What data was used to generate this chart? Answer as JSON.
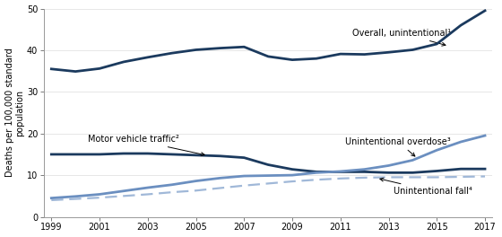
{
  "years": [
    1999,
    2000,
    2001,
    2002,
    2003,
    2004,
    2005,
    2006,
    2007,
    2008,
    2009,
    2010,
    2011,
    2012,
    2013,
    2014,
    2015,
    2016,
    2017
  ],
  "overall": [
    35.5,
    34.9,
    35.6,
    37.2,
    38.3,
    39.3,
    40.1,
    40.5,
    40.8,
    38.5,
    37.7,
    38.0,
    39.1,
    39.0,
    39.5,
    40.1,
    41.5,
    46.0,
    49.5
  ],
  "motor_vehicle": [
    15.0,
    15.0,
    15.0,
    15.2,
    15.2,
    15.0,
    14.8,
    14.6,
    14.2,
    12.5,
    11.4,
    10.8,
    10.8,
    10.8,
    10.6,
    10.6,
    11.0,
    11.5,
    11.5
  ],
  "overdose": [
    4.5,
    4.9,
    5.4,
    6.2,
    7.0,
    7.7,
    8.6,
    9.3,
    9.8,
    9.9,
    10.0,
    10.6,
    10.9,
    11.4,
    12.3,
    13.6,
    16.0,
    18.0,
    19.5
  ],
  "fall": [
    4.0,
    4.3,
    4.6,
    5.0,
    5.4,
    5.9,
    6.3,
    6.9,
    7.5,
    8.0,
    8.5,
    8.9,
    9.2,
    9.4,
    9.5,
    9.5,
    9.5,
    9.6,
    9.7
  ],
  "overall_color": "#1b3a5e",
  "motor_vehicle_color": "#1b3a5e",
  "overdose_color": "#6b8fc0",
  "fall_color": "#a0b8d8",
  "ylabel": "Deaths per 100,000 standard\npopulation",
  "ylim": [
    0,
    50
  ],
  "yticks": [
    0,
    10,
    20,
    30,
    40,
    50
  ],
  "xlim": [
    1999,
    2017
  ],
  "xticks": [
    1999,
    2001,
    2003,
    2005,
    2007,
    2009,
    2011,
    2013,
    2015,
    2017
  ],
  "annotation_overall": "Overall, unintentional¹",
  "annotation_motor": "Motor vehicle traffic²",
  "annotation_overdose": "Unintentional overdose³",
  "annotation_fall": "Unintentional fall⁴",
  "overall_lw": 2.0,
  "motor_lw": 2.0,
  "overdose_lw": 2.0,
  "fall_lw": 1.6,
  "background_color": "#ffffff"
}
